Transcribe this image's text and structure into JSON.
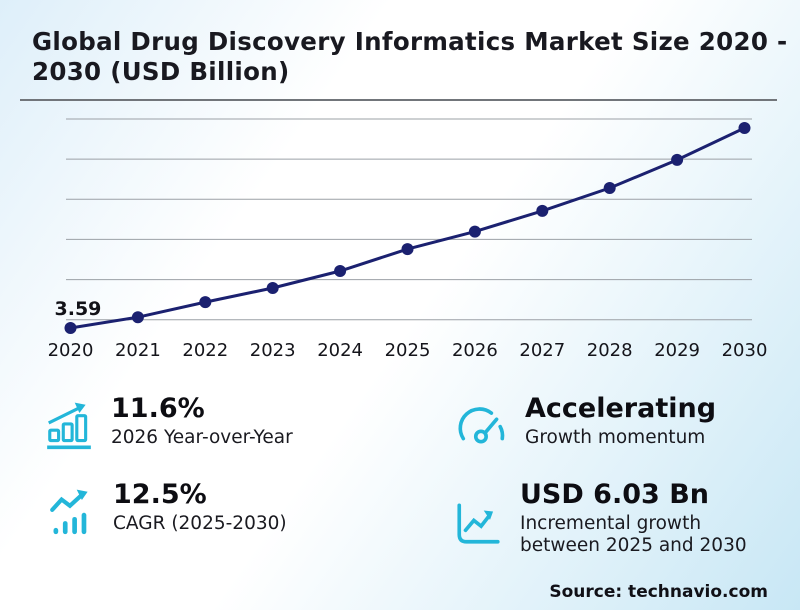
{
  "header": {
    "title": "Global Drug Discovery Informatics Market Size 2020 - 2030 (USD Billion)"
  },
  "colors": {
    "line": "#1b2170",
    "accent": "#23b6d9",
    "gridline": "#9ba0a6",
    "axis_text": "#15151b",
    "label_text": "#121218"
  },
  "chart_data": {
    "type": "line",
    "title": "Global Drug Discovery Informatics Market Size 2020 - 2030 (USD Billion)",
    "x": [
      2020,
      2021,
      2022,
      2023,
      2024,
      2025,
      2026,
      2027,
      2028,
      2029,
      2030
    ],
    "values": [
      3.59,
      4.13,
      4.88,
      5.58,
      6.43,
      7.52,
      8.39,
      9.42,
      10.56,
      11.96,
      13.55
    ],
    "point_label": {
      "x": 2020,
      "text": "3.59"
    },
    "xlabel": "",
    "ylabel": "USD Billion",
    "ylim": [
      3.2,
      14.6
    ],
    "gridline_values": [
      4,
      6,
      8,
      10,
      12,
      14
    ],
    "grid": true,
    "legend": false
  },
  "stats": [
    {
      "icon": "growth-bar-chart-icon",
      "value": "11.6%",
      "label": "2026 Year-over-Year"
    },
    {
      "icon": "speedometer-icon",
      "value": "Accelerating",
      "label": "Growth momentum"
    },
    {
      "icon": "trend-bars-icon",
      "value": "12.5%",
      "label": "CAGR (2025-2030)"
    },
    {
      "icon": "framed-trend-icon",
      "value": "USD 6.03 Bn",
      "label": "Incremental growth between 2025 and 2030"
    }
  ],
  "footer": {
    "source": "Source: technavio.com"
  }
}
